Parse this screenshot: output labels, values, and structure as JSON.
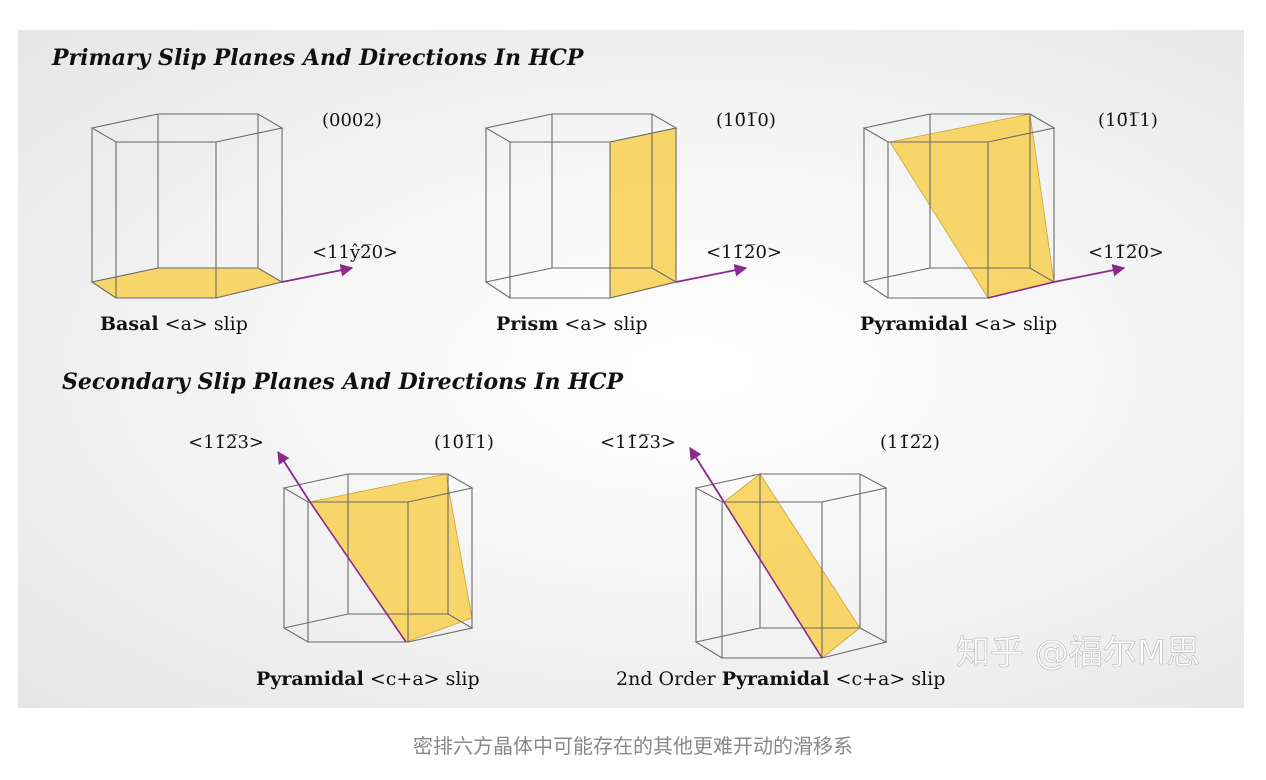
{
  "headings": {
    "primary": "Primary Slip Planes And Directions In HCP",
    "secondary": "Secondary Slip Planes And Directions In HCP"
  },
  "panels": {
    "basal": {
      "plane": "(0002)",
      "direction": "<11ŷ2̅0>",
      "name_bold": "Basal",
      "name_rest": " <a> slip"
    },
    "prism": {
      "plane": "(10̄1̅0)",
      "direction": "<11̄2̅0>",
      "name_bold": "Prism",
      "name_rest": " <a> slip"
    },
    "pyramidal_a": {
      "plane": "(10̄1̅1)",
      "direction": "<11̄2̅0>",
      "name_bold": "Pyramidal",
      "name_rest": " <a> slip"
    },
    "pyramidal_ca": {
      "plane": "(10̄1̅1)",
      "direction": "<11̄2̅3>",
      "name_bold": "Pyramidal",
      "name_rest": " <c+a> slip"
    },
    "second_order": {
      "plane": "(11̄2̅2)",
      "direction": "<11̄2̅3>",
      "name_prefix": "2nd Order ",
      "name_bold": "Pyramidal",
      "name_rest": " <c+a> slip"
    }
  },
  "watermark": "知乎 @福尔M思",
  "caption": "密排六方晶体中可能存在的其他更难开动的滑移系",
  "colors": {
    "plane_fill": "#f7d25a",
    "arrow": "#8a2a8c",
    "edge": "#6a6a6a"
  }
}
